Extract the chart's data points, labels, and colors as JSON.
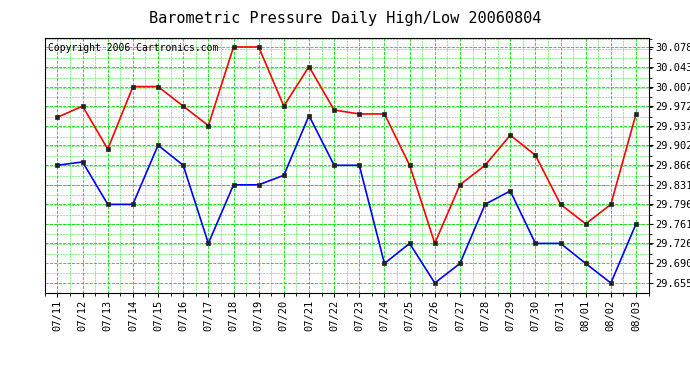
{
  "title": "Barometric Pressure Daily High/Low 20060804",
  "copyright": "Copyright 2006 Cartronics.com",
  "dates": [
    "07/11",
    "07/12",
    "07/13",
    "07/14",
    "07/15",
    "07/16",
    "07/17",
    "07/18",
    "07/19",
    "07/20",
    "07/21",
    "07/22",
    "07/23",
    "07/24",
    "07/25",
    "07/26",
    "07/27",
    "07/28",
    "07/29",
    "07/30",
    "07/31",
    "08/01",
    "08/02",
    "08/03"
  ],
  "high_values": [
    29.952,
    29.972,
    29.895,
    30.007,
    30.007,
    29.972,
    29.937,
    30.078,
    30.078,
    29.972,
    30.043,
    29.965,
    29.958,
    29.958,
    29.866,
    29.726,
    29.831,
    29.866,
    29.92,
    29.884,
    29.796,
    29.761,
    29.796,
    29.958
  ],
  "low_values": [
    29.866,
    29.872,
    29.796,
    29.796,
    29.902,
    29.866,
    29.726,
    29.831,
    29.831,
    29.848,
    29.955,
    29.866,
    29.866,
    29.69,
    29.726,
    29.655,
    29.69,
    29.796,
    29.82,
    29.726,
    29.726,
    29.69,
    29.655,
    29.761
  ],
  "high_color": "#ff0000",
  "low_color": "#0000ff",
  "bg_color": "#ffffff",
  "plot_bg_color": "#ffffff",
  "grid_color": "#00dd00",
  "yticks": [
    29.655,
    29.69,
    29.726,
    29.761,
    29.796,
    29.831,
    29.866,
    29.902,
    29.937,
    29.972,
    30.007,
    30.043,
    30.078
  ],
  "ymin": 29.638,
  "ymax": 30.095,
  "title_fontsize": 11,
  "copyright_fontsize": 7,
  "tick_fontsize": 7.5,
  "marker": "s",
  "marker_size": 3,
  "line_width": 1.2
}
